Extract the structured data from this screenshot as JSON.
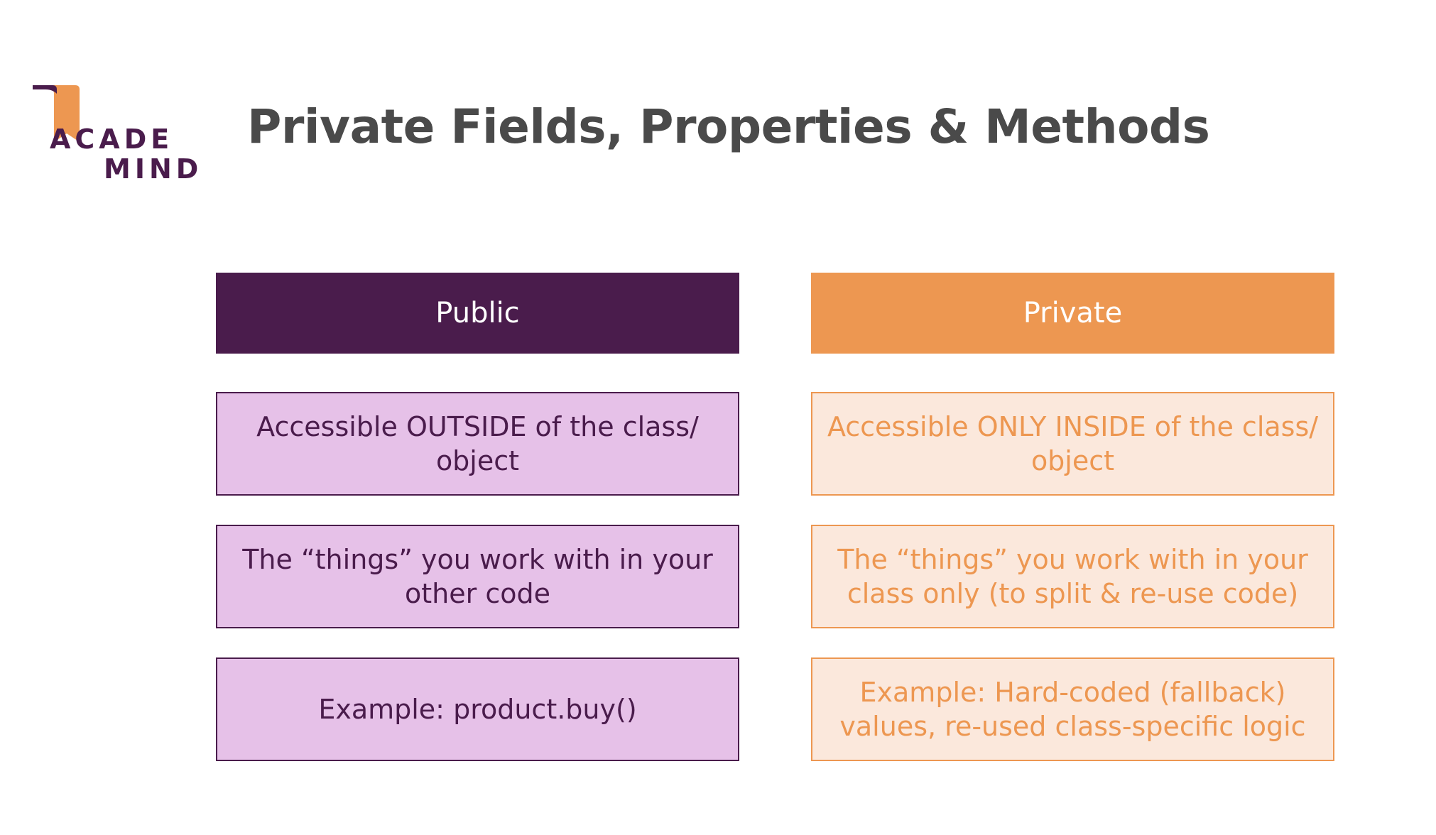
{
  "brand": {
    "line1": "ACADE",
    "line2": "MIND",
    "colors": {
      "purple": "#4a1c4c",
      "orange": "#ed9751"
    }
  },
  "title": "Private Fields, Properties & Methods",
  "columns": [
    {
      "header": "Public",
      "rows": [
        "Accessible OUTSIDE of the class/ object",
        "The “things” you work with in your other code",
        "Example: product.buy()"
      ]
    },
    {
      "header": "Private",
      "rows": [
        "Accessible ONLY INSIDE of the class/ object",
        "The “things” you work with in your class only (to split & re-use code)",
        "Example: Hard-coded (fallback) values, re-used class-specific logic"
      ]
    }
  ]
}
